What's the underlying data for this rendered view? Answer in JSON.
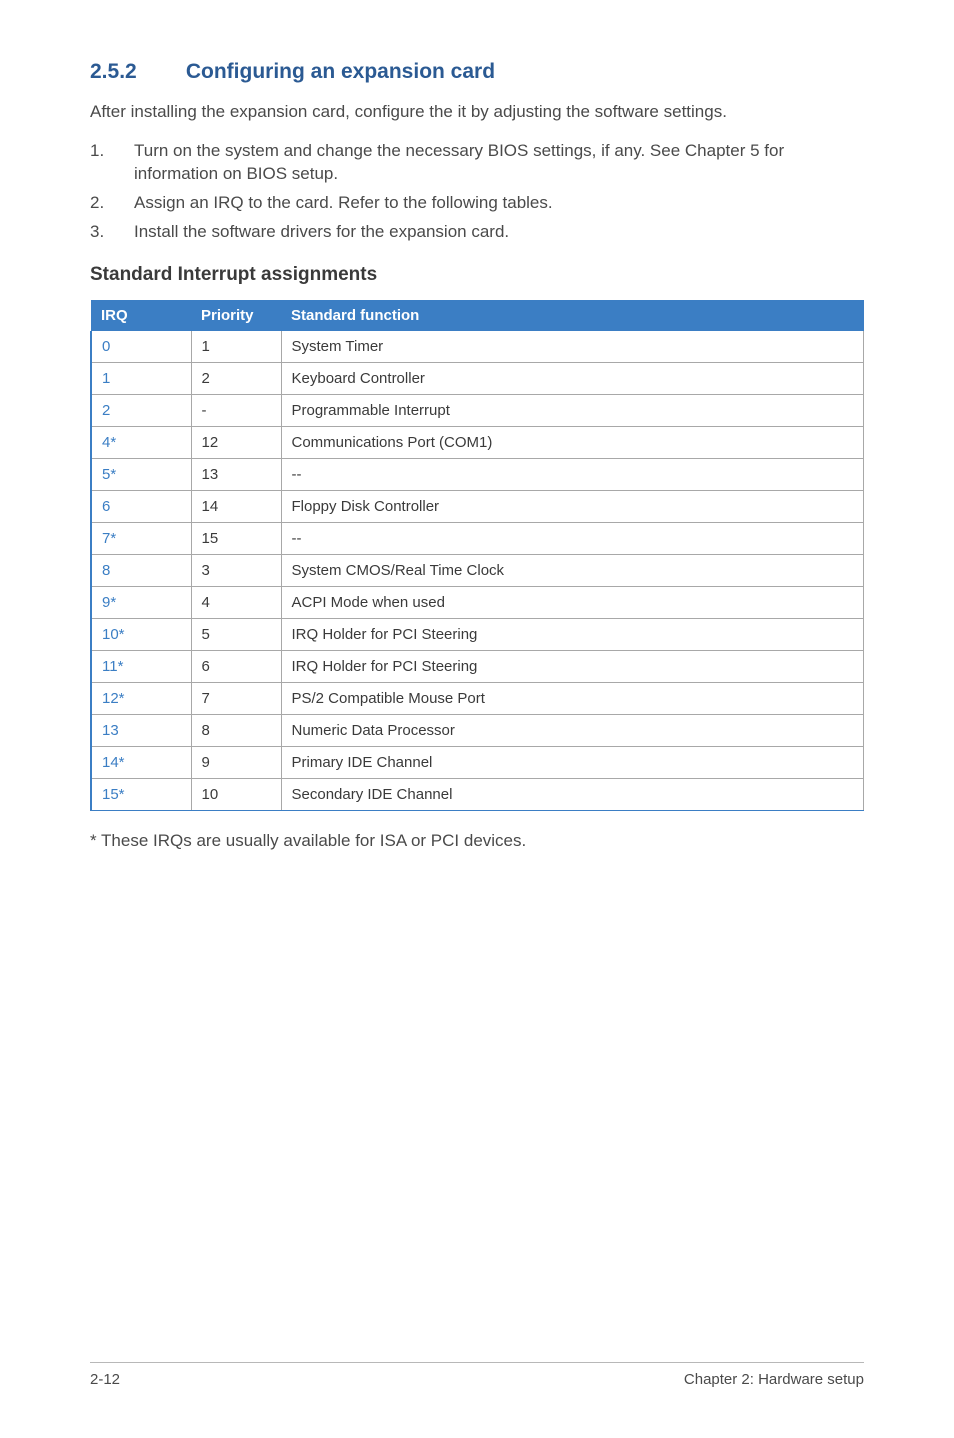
{
  "heading": {
    "number": "2.5.2",
    "title": "Configuring an expansion card",
    "color": "#2b5a93",
    "fontsize": 21
  },
  "intro": "After installing the expansion card, configure the it by adjusting the software settings.",
  "steps": [
    {
      "n": "1.",
      "text": "Turn on the system and change the necessary BIOS settings, if any. See Chapter 5 for information on BIOS setup."
    },
    {
      "n": "2.",
      "text": "Assign an IRQ to the card. Refer to the following tables."
    },
    {
      "n": "3.",
      "text": "Install the software drivers for the expansion card."
    }
  ],
  "sub_heading": "Standard Interrupt assignments",
  "table": {
    "header_bg": "#3b7ec4",
    "header_fg": "#ffffff",
    "left_border": "#3b7ec4",
    "bottom_border": "#3b7ec4",
    "row_border": "#a8a8a8",
    "columns": [
      "IRQ",
      "Priority",
      "Standard function"
    ],
    "rows": [
      [
        "0",
        "1",
        "System Timer"
      ],
      [
        "1",
        "2",
        "Keyboard Controller"
      ],
      [
        "2",
        "-",
        "Programmable Interrupt"
      ],
      [
        "4*",
        "12",
        "Communications Port (COM1)"
      ],
      [
        "5*",
        "13",
        "--"
      ],
      [
        "6",
        "14",
        "Floppy Disk Controller"
      ],
      [
        "7*",
        "15",
        "--"
      ],
      [
        "8",
        "3",
        "System CMOS/Real Time Clock"
      ],
      [
        "9*",
        "4",
        "ACPI Mode when used"
      ],
      [
        "10*",
        "5",
        "IRQ Holder for PCI Steering"
      ],
      [
        "11*",
        "6",
        "IRQ Holder for PCI Steering"
      ],
      [
        "12*",
        "7",
        "PS/2 Compatible Mouse Port"
      ],
      [
        "13",
        "8",
        "Numeric Data Processor"
      ],
      [
        "14*",
        "9",
        "Primary IDE Channel"
      ],
      [
        "15*",
        "10",
        "Secondary IDE Channel"
      ]
    ]
  },
  "footnote": "* These IRQs are usually available for ISA or PCI devices.",
  "footer": {
    "left": "2-12",
    "right": "Chapter 2:  Hardware setup"
  },
  "body_text_color": "#4a4a4a",
  "body_fontsize": 17
}
